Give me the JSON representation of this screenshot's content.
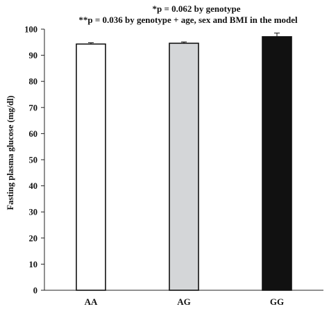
{
  "chart_data": {
    "type": "bar",
    "title_lines": [
      "*p =  0.062 by genotype",
      "**p = 0.036 by genotype + age, sex and BMI in the model"
    ],
    "xlabel": "",
    "ylabel": "Fasting plasma glucose (mg/dl)",
    "ylim": [
      0,
      100
    ],
    "yticks": [
      0,
      10,
      20,
      30,
      40,
      50,
      60,
      70,
      80,
      90,
      100
    ],
    "categories": [
      "AA",
      "AG",
      "GG"
    ],
    "values": [
      94.3,
      94.6,
      97.1
    ],
    "error": [
      0.5,
      0.5,
      1.4
    ],
    "bar_colors": [
      "#ffffff",
      "#d4d6d8",
      "#111111"
    ],
    "grid": false,
    "legend": "none"
  }
}
